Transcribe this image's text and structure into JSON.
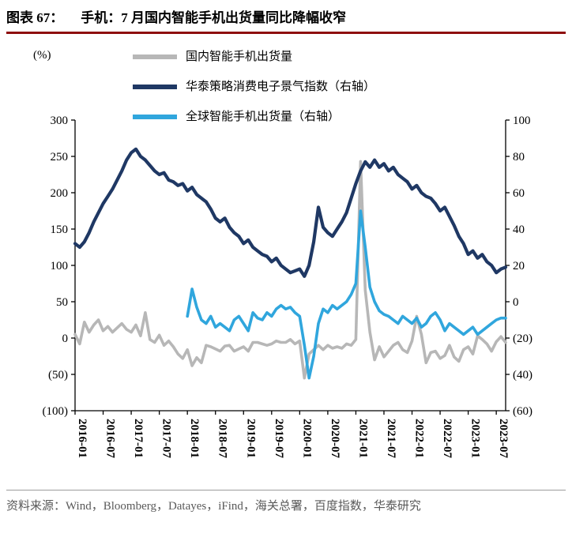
{
  "header": {
    "label": "图表 67：",
    "title": "手机：7 月国内智能手机出货量同比降幅收窄"
  },
  "source": "资料来源：Wind，Bloomberg，Datayes，iFind，海关总署，百度指数，华泰研究",
  "colors": {
    "title_rule": "#8e0e0e",
    "footer_divider": "#9c9c9c",
    "axis": "#000000"
  },
  "chart_data": {
    "type": "line",
    "title": "手机：7月国内智能手机出货量同比降幅收窄",
    "unit_label": "(%)",
    "x_start": "2016-01",
    "x_freq": "monthly",
    "x_ticks": [
      "2016-01",
      "2016-07",
      "2017-01",
      "2017-07",
      "2018-01",
      "2018-07",
      "2019-01",
      "2019-07",
      "2020-01",
      "2020-07",
      "2021-01",
      "2021-07",
      "2022-01",
      "2022-07",
      "2023-01",
      "2023-07"
    ],
    "left_axis": {
      "min": -100,
      "max": 300,
      "values": [
        300,
        250,
        200,
        150,
        100,
        50,
        0,
        -50,
        -100
      ],
      "labels": [
        "300",
        "250",
        "200",
        "150",
        "100",
        "50",
        "0",
        "(50)",
        "(100)"
      ]
    },
    "right_axis": {
      "min": -60,
      "max": 100,
      "values": [
        100,
        80,
        60,
        40,
        20,
        0,
        -20,
        -40,
        -60
      ],
      "labels": [
        "100",
        "80",
        "60",
        "40",
        "20",
        "0",
        "(20)",
        "(40)",
        "(60)"
      ]
    },
    "legend_position": "top",
    "grid": false,
    "series": [
      {
        "name": "国内智能手机出货量",
        "axis": "left",
        "color": "#b7b7b7",
        "width": 3.6,
        "values": [
          5,
          -8,
          22,
          8,
          18,
          25,
          10,
          16,
          8,
          14,
          20,
          12,
          8,
          18,
          3,
          35,
          -2,
          -6,
          4,
          -10,
          -4,
          -12,
          -22,
          -28,
          -16,
          -38,
          -27,
          -34,
          -10,
          -12,
          -15,
          -18,
          -11,
          -10,
          -18,
          -15,
          -12,
          -18,
          -6,
          -6,
          -8,
          -10,
          -8,
          -4,
          -6,
          -6,
          -2,
          -8,
          -4,
          -55,
          -22,
          -16,
          -10,
          -16,
          -10,
          -14,
          -12,
          -14,
          -8,
          -10,
          -2,
          243,
          66,
          8,
          -30,
          -12,
          -26,
          -18,
          -10,
          -6,
          -16,
          -20,
          -4,
          30,
          5,
          -34,
          -20,
          -18,
          -28,
          -24,
          -10,
          -26,
          -32,
          -16,
          -12,
          -22,
          3,
          -2,
          -8,
          -18,
          -5,
          2,
          -6
        ]
      },
      {
        "name": "华泰策略消费电子景气指数（右轴）",
        "axis": "right",
        "color": "#1f3864",
        "width": 4.2,
        "values": [
          32,
          30,
          33,
          38,
          44,
          49,
          54,
          58,
          62,
          67,
          72,
          78,
          82,
          84,
          80,
          78,
          75,
          72,
          70,
          71,
          67,
          66,
          64,
          65,
          61,
          63,
          59,
          57,
          55,
          51,
          46,
          44,
          46,
          41,
          38,
          36,
          32,
          34,
          30,
          28,
          26,
          25,
          22,
          24,
          20,
          18,
          16,
          17,
          18,
          14,
          20,
          33,
          52,
          41,
          38,
          36,
          40,
          44,
          49,
          57,
          65,
          72,
          77,
          74,
          78,
          74,
          76,
          72,
          74,
          70,
          68,
          66,
          62,
          64,
          60,
          58,
          57,
          54,
          50,
          52,
          47,
          42,
          36,
          32,
          26,
          28,
          24,
          26,
          22,
          20,
          16,
          18,
          19
        ]
      },
      {
        "name": "全球智能手机出货量（右轴）",
        "axis": "right",
        "color": "#30a6dd",
        "width": 3.6,
        "values": [
          null,
          null,
          null,
          null,
          null,
          null,
          null,
          null,
          null,
          null,
          null,
          null,
          null,
          null,
          null,
          null,
          null,
          null,
          null,
          null,
          null,
          null,
          null,
          null,
          -8,
          7,
          -3,
          -10,
          -12,
          -8,
          -14,
          -12,
          -14,
          -16,
          -10,
          -8,
          -12,
          -16,
          -6,
          -9,
          -10,
          -6,
          -8,
          -4,
          -2,
          -4,
          -3,
          -6,
          -8,
          -24,
          -42,
          -30,
          -12,
          -4,
          -6,
          -2,
          -4,
          -2,
          0,
          4,
          10,
          50,
          30,
          8,
          0,
          -5,
          -7,
          -8,
          -10,
          -12,
          -8,
          -10,
          -12,
          -9,
          -14,
          -12,
          -8,
          -6,
          -10,
          -16,
          -12,
          -14,
          -16,
          -18,
          -16,
          -14,
          -18,
          -16,
          -14,
          -12,
          -10,
          -9,
          -9
        ]
      }
    ]
  }
}
